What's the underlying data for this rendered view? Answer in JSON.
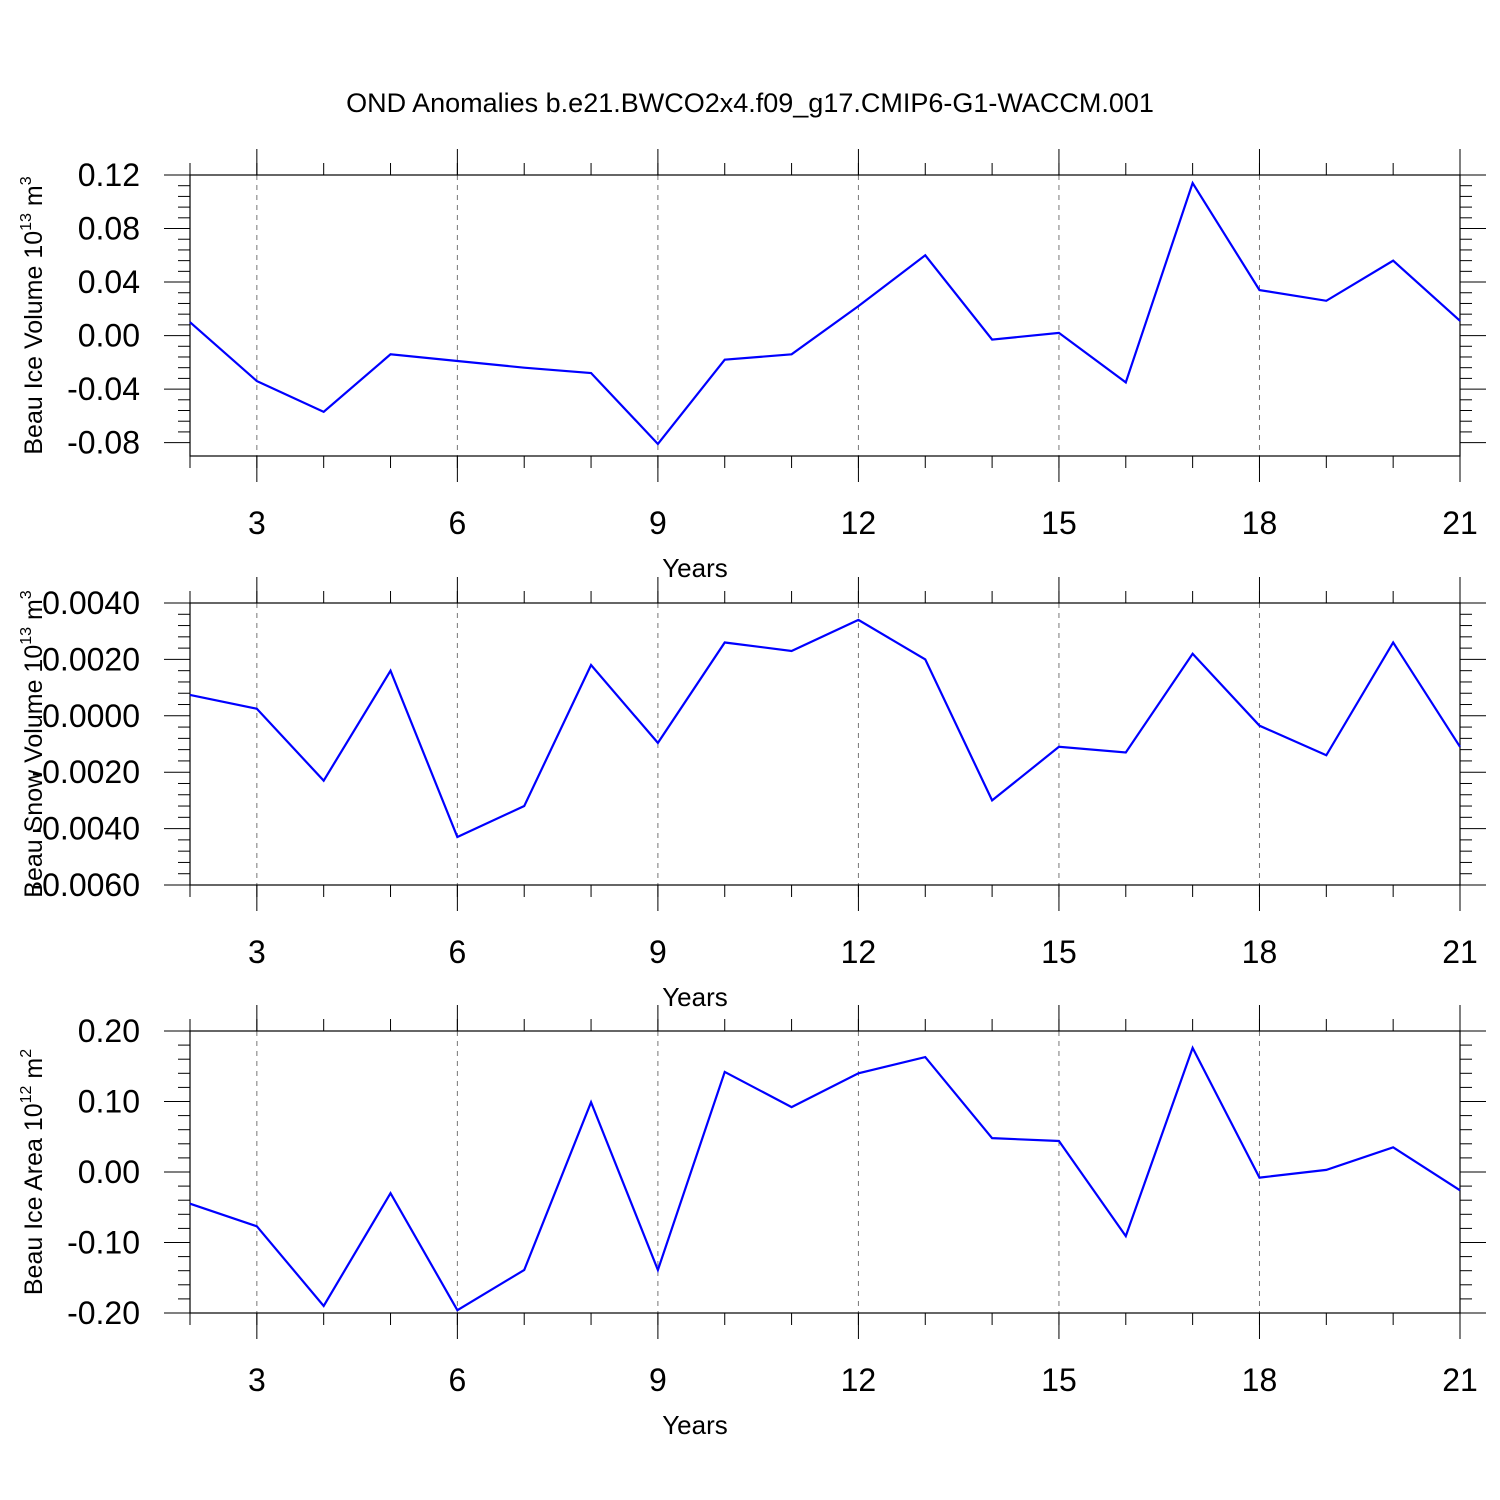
{
  "chart_data": [
    {
      "type": "line",
      "title": "OND Anomalies b.e21.BWCO2x4.f09_g17.CMIP6-G1-WACCM.001",
      "ylabel": [
        "Beau Ice Volume 10",
        "13",
        " m",
        "3"
      ],
      "xlabel": "Years",
      "x": [
        2,
        3,
        4,
        5,
        6,
        7,
        8,
        9,
        10,
        11,
        12,
        13,
        14,
        15,
        16,
        17,
        18,
        19,
        20,
        21
      ],
      "values": [
        0.01,
        -0.034,
        -0.057,
        -0.014,
        -0.019,
        -0.024,
        -0.028,
        -0.081,
        -0.018,
        -0.014,
        0.022,
        0.06,
        -0.003,
        0.002,
        -0.035,
        0.114,
        0.034,
        0.026,
        0.056,
        0.011
      ],
      "color": "#0000ff",
      "xlim": [
        2,
        21
      ],
      "xticks": [
        3,
        6,
        9,
        12,
        15,
        18,
        21
      ],
      "xgrid": true,
      "ylim": [
        -0.09,
        0.12
      ],
      "yticks": [
        {
          "value": 0.12,
          "label": "0.12"
        },
        {
          "value": 0.08,
          "label": "0.08"
        },
        {
          "value": 0.04,
          "label": "0.04"
        },
        {
          "value": 0,
          "label": "0.00"
        },
        {
          "value": -0.04,
          "label": "-0.04"
        },
        {
          "value": -0.08,
          "label": "-0.08"
        }
      ]
    },
    {
      "type": "line",
      "ylabel": [
        "Beau Snow Volume 10",
        "13",
        " m",
        "3"
      ],
      "xlabel": "Years",
      "x": [
        2,
        3,
        4,
        5,
        6,
        7,
        8,
        9,
        10,
        11,
        12,
        13,
        14,
        15,
        16,
        17,
        18,
        19,
        20,
        21
      ],
      "values": [
        0.00074,
        0.00025,
        -0.0023,
        0.0016,
        -0.0043,
        -0.0032,
        0.0018,
        -0.00096,
        0.0026,
        0.0023,
        0.0034,
        0.002,
        -0.003,
        -0.0011,
        -0.0013,
        0.0022,
        -0.00035,
        -0.0014,
        0.0026,
        -0.0011
      ],
      "color": "#0000ff",
      "xlim": [
        2,
        21
      ],
      "xticks": [
        3,
        6,
        9,
        12,
        15,
        18,
        21
      ],
      "xgrid": true,
      "ylim": [
        -0.006,
        0.004
      ],
      "yticks": [
        {
          "value": 0.004,
          "label": "0.0040"
        },
        {
          "value": 0.002,
          "label": "0.0020"
        },
        {
          "value": 0,
          "label": "0.0000"
        },
        {
          "value": -0.002,
          "label": "-0.0020"
        },
        {
          "value": -0.004,
          "label": "-0.0040"
        },
        {
          "value": -0.006,
          "label": "-0.0060"
        }
      ]
    },
    {
      "type": "line",
      "ylabel": [
        "Beau Ice Area 10",
        "12",
        " m",
        "2"
      ],
      "xlabel": "Years",
      "x": [
        2,
        3,
        4,
        5,
        6,
        7,
        8,
        9,
        10,
        11,
        12,
        13,
        14,
        15,
        16,
        17,
        18,
        19,
        20,
        21
      ],
      "values": [
        -0.045,
        -0.077,
        -0.19,
        -0.03,
        -0.196,
        -0.139,
        0.099,
        -0.139,
        0.142,
        0.092,
        0.14,
        0.163,
        0.048,
        0.044,
        -0.091,
        0.176,
        -0.008,
        0.003,
        0.035,
        -0.026
      ],
      "color": "#0000ff",
      "xlim": [
        2,
        21
      ],
      "xticks": [
        3,
        6,
        9,
        12,
        15,
        18,
        21
      ],
      "xgrid": true,
      "ylim": [
        -0.2,
        0.2
      ],
      "yticks": [
        {
          "value": 0.2,
          "label": "0.20"
        },
        {
          "value": 0.1,
          "label": "0.10"
        },
        {
          "value": 0,
          "label": "0.00"
        },
        {
          "value": -0.1,
          "label": "-0.10"
        },
        {
          "value": -0.2,
          "label": "-0.20"
        }
      ]
    }
  ]
}
